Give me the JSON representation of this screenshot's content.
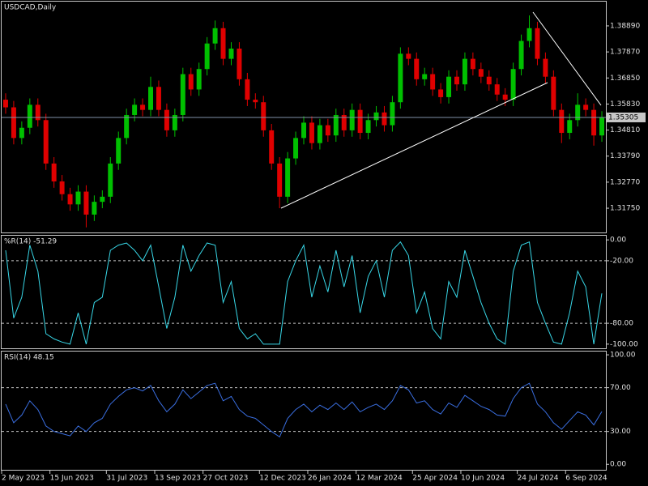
{
  "chart_data": [
    {
      "type": "candlestick",
      "title": "USDCAD,Daily",
      "categories": [
        "2 May 2023",
        null,
        null,
        null,
        null,
        null,
        "15 Jun 2023",
        null,
        null,
        null,
        null,
        null,
        null,
        "31 Jul 2023",
        null,
        null,
        null,
        null,
        null,
        "13 Sep 2023",
        null,
        null,
        null,
        null,
        null,
        "27 Oct 2023",
        null,
        null,
        null,
        null,
        null,
        null,
        "12 Dec 2023",
        null,
        null,
        null,
        null,
        null,
        "26 Jan 2024",
        null,
        null,
        null,
        null,
        null,
        "12 Mar 2024",
        null,
        null,
        null,
        null,
        null,
        null,
        "25 Apr 2024",
        null,
        null,
        null,
        null,
        null,
        "10 Jun 2024",
        null,
        null,
        null,
        null,
        null,
        null,
        "24 Jul 2024",
        null,
        null,
        null,
        null,
        null,
        "6 Sep 2024",
        null,
        null,
        null,
        null
      ],
      "open": [
        1.36,
        1.357,
        1.345,
        1.349,
        1.358,
        1.352,
        1.335,
        1.328,
        1.323,
        1.319,
        1.324,
        1.315,
        1.32,
        1.322,
        1.335,
        1.345,
        1.354,
        1.358,
        1.356,
        1.365,
        1.356,
        1.348,
        1.354,
        1.37,
        1.364,
        1.372,
        1.382,
        1.388,
        1.376,
        1.38,
        1.368,
        1.36,
        1.359,
        1.348,
        1.335,
        1.322,
        1.337,
        1.345,
        1.351,
        1.343,
        1.35,
        1.346,
        1.354,
        1.348,
        1.356,
        1.347,
        1.352,
        1.355,
        1.35,
        1.359,
        1.378,
        1.376,
        1.368,
        1.37,
        1.364,
        1.361,
        1.369,
        1.366,
        1.376,
        1.372,
        1.369,
        1.366,
        1.362,
        1.36,
        1.372,
        1.383,
        1.388,
        1.376,
        1.369,
        1.356,
        1.347,
        1.352,
        1.358,
        1.356,
        1.346
      ],
      "high": [
        1.3625,
        1.3595,
        1.3515,
        1.3605,
        1.3605,
        1.3545,
        1.3375,
        1.3305,
        1.3255,
        1.3265,
        1.3265,
        1.3225,
        1.3245,
        1.3375,
        1.3475,
        1.3565,
        1.3605,
        1.3605,
        1.369,
        1.3675,
        1.3585,
        1.3565,
        1.3725,
        1.3725,
        1.3745,
        1.3845,
        1.391,
        1.3905,
        1.3825,
        1.3825,
        1.3705,
        1.3625,
        1.3615,
        1.3505,
        1.3375,
        1.3395,
        1.3475,
        1.3535,
        1.3535,
        1.3525,
        1.3525,
        1.3565,
        1.3565,
        1.3585,
        1.3585,
        1.3545,
        1.3575,
        1.3575,
        1.3615,
        1.3805,
        1.3805,
        1.3785,
        1.3725,
        1.3725,
        1.3665,
        1.3715,
        1.3715,
        1.3785,
        1.3785,
        1.3745,
        1.3715,
        1.3685,
        1.3645,
        1.3745,
        1.3855,
        1.393,
        1.3905,
        1.3785,
        1.3715,
        1.3585,
        1.3545,
        1.3625,
        1.3605,
        1.3585,
        1.3555
      ],
      "low": [
        1.3545,
        1.3425,
        1.3425,
        1.3465,
        1.3495,
        1.3325,
        1.3255,
        1.3205,
        1.3165,
        1.3165,
        1.31,
        1.3125,
        1.3175,
        1.3195,
        1.3325,
        1.3425,
        1.3515,
        1.3535,
        1.3535,
        1.3535,
        1.3455,
        1.3455,
        1.3515,
        1.3615,
        1.3615,
        1.3695,
        1.3795,
        1.3735,
        1.3735,
        1.3655,
        1.3575,
        1.3565,
        1.3455,
        1.3325,
        1.3175,
        1.3195,
        1.3345,
        1.3425,
        1.3405,
        1.3405,
        1.3435,
        1.3435,
        1.3455,
        1.3455,
        1.3445,
        1.3445,
        1.3495,
        1.3475,
        1.3475,
        1.3565,
        1.3735,
        1.3655,
        1.3655,
        1.3615,
        1.3585,
        1.3585,
        1.3635,
        1.3635,
        1.3695,
        1.3665,
        1.3635,
        1.3595,
        1.3575,
        1.3575,
        1.3695,
        1.3805,
        1.3735,
        1.3665,
        1.3535,
        1.343,
        1.3445,
        1.3495,
        1.3535,
        1.342,
        1.3435
      ],
      "close": [
        1.357,
        1.345,
        1.349,
        1.358,
        1.352,
        1.335,
        1.328,
        1.323,
        1.319,
        1.324,
        1.315,
        1.32,
        1.322,
        1.335,
        1.345,
        1.354,
        1.358,
        1.356,
        1.365,
        1.356,
        1.348,
        1.354,
        1.37,
        1.364,
        1.372,
        1.382,
        1.388,
        1.376,
        1.38,
        1.368,
        1.36,
        1.359,
        1.348,
        1.335,
        1.322,
        1.337,
        1.345,
        1.351,
        1.343,
        1.35,
        1.346,
        1.354,
        1.348,
        1.356,
        1.347,
        1.352,
        1.355,
        1.35,
        1.359,
        1.378,
        1.376,
        1.368,
        1.37,
        1.364,
        1.361,
        1.369,
        1.366,
        1.376,
        1.372,
        1.369,
        1.366,
        1.362,
        1.36,
        1.372,
        1.383,
        1.388,
        1.376,
        1.369,
        1.356,
        1.347,
        1.352,
        1.358,
        1.356,
        1.346,
        1.353
      ],
      "up_color": "#00c000",
      "down_color": "#e00000",
      "current_price": 1.35305,
      "ylim": [
        1.308,
        1.3984
      ],
      "yticks": [
        {
          "value": 1.3889,
          "label": "1.38890"
        },
        {
          "value": 1.3787,
          "label": "1.37870"
        },
        {
          "value": 1.3685,
          "label": "1.36850"
        },
        {
          "value": 1.3583,
          "label": "1.35830"
        },
        {
          "value": 1.3481,
          "label": "1.34810"
        },
        {
          "value": 1.3379,
          "label": "1.33790"
        },
        {
          "value": 1.3277,
          "label": "1.32770"
        },
        {
          "value": 1.3175,
          "label": "1.31750"
        }
      ]
    },
    {
      "type": "line",
      "title": "%R(14) -51.29",
      "series": [
        {
          "name": "%R(14)",
          "color": "#38d8e8",
          "values": [
            -10,
            -75,
            -55,
            -5,
            -30,
            -90,
            -95,
            -98,
            -100,
            -70,
            -100,
            -60,
            -55,
            -10,
            -5,
            -3,
            -10,
            -20,
            -5,
            -45,
            -85,
            -55,
            -5,
            -30,
            -15,
            -3,
            -5,
            -60,
            -40,
            -85,
            -95,
            -90,
            -100,
            -100,
            -100,
            -40,
            -20,
            -5,
            -55,
            -25,
            -50,
            -10,
            -45,
            -15,
            -70,
            -35,
            -20,
            -55,
            -10,
            -2,
            -15,
            -70,
            -50,
            -85,
            -95,
            -40,
            -55,
            -10,
            -35,
            -60,
            -80,
            -95,
            -100,
            -30,
            -5,
            -2,
            -60,
            -80,
            -98,
            -100,
            -70,
            -30,
            -45,
            -100,
            -51.29
          ]
        }
      ],
      "ylim": [
        -104,
        4
      ],
      "yticks": [
        {
          "value": 0,
          "label": "0.00"
        },
        {
          "value": -20,
          "label": "-20.00"
        },
        {
          "value": -80,
          "label": "-80.00"
        },
        {
          "value": -100,
          "label": "-100.00"
        }
      ],
      "levels": [
        -20,
        -80
      ]
    },
    {
      "type": "line",
      "title": "RSI(14) 48.15",
      "series": [
        {
          "name": "RSI(14)",
          "color": "#3a6ee0",
          "values": [
            55,
            38,
            45,
            58,
            50,
            35,
            30,
            28,
            26,
            35,
            30,
            38,
            42,
            55,
            62,
            68,
            70,
            67,
            72,
            58,
            48,
            55,
            68,
            60,
            66,
            72,
            74,
            58,
            62,
            50,
            44,
            42,
            36,
            30,
            25,
            42,
            50,
            55,
            48,
            54,
            50,
            56,
            50,
            57,
            48,
            52,
            55,
            50,
            58,
            72,
            68,
            56,
            58,
            50,
            46,
            56,
            52,
            63,
            58,
            53,
            50,
            45,
            44,
            60,
            70,
            74,
            55,
            48,
            38,
            32,
            40,
            48,
            45,
            36,
            48.15
          ]
        }
      ],
      "ylim": [
        -5,
        103
      ],
      "yticks": [
        {
          "value": 100,
          "label": "100.00"
        },
        {
          "value": 70,
          "label": "70.00"
        },
        {
          "value": 30,
          "label": "30.00"
        },
        {
          "value": 0,
          "label": "0.00"
        }
      ],
      "levels": [
        70,
        30
      ]
    }
  ]
}
